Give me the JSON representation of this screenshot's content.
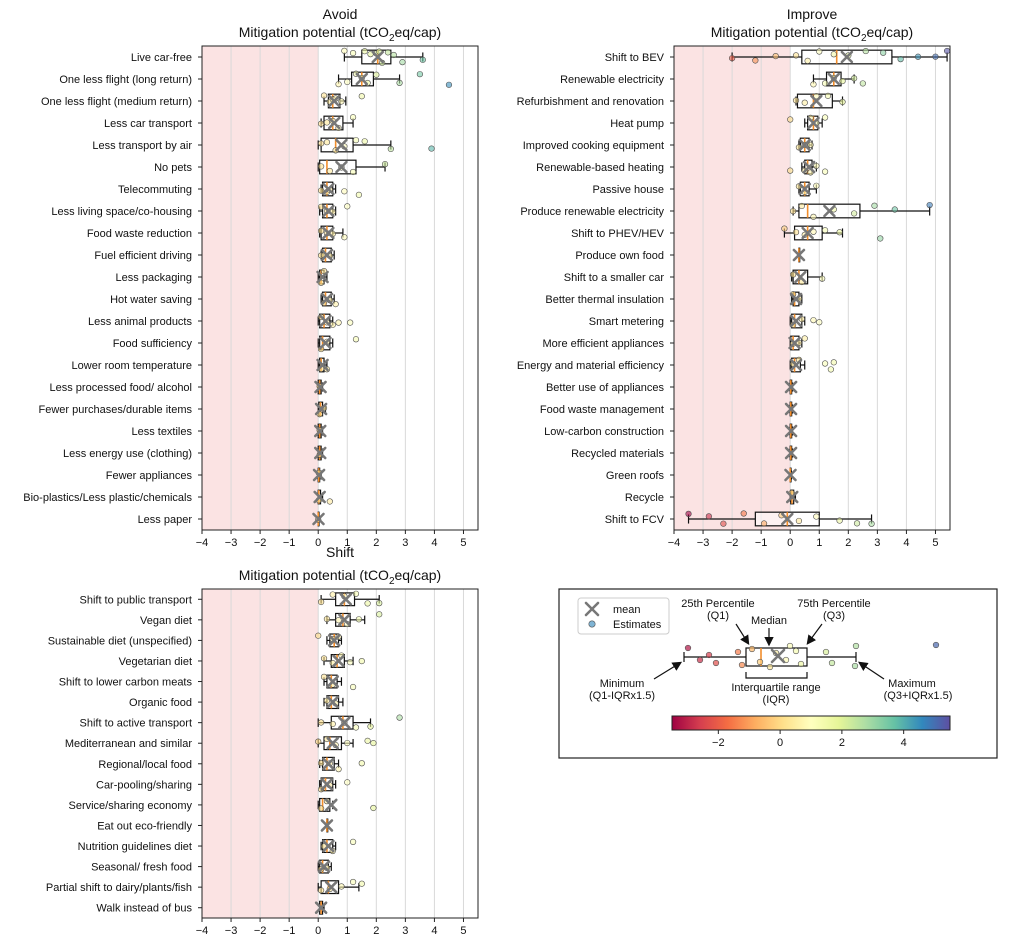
{
  "chart_data": [
    {
      "type": "boxplot",
      "title": "Avoid",
      "xlabel": "Mitigation potential (tCO₂eq/cap)",
      "xlim": [
        -4,
        5.5
      ],
      "xticks": [
        -4,
        -3,
        -2,
        -1,
        0,
        1,
        2,
        3,
        4,
        5
      ],
      "shaded_region": [
        -4,
        0
      ],
      "grid": "vertical",
      "rows": [
        {
          "label": "Live car-free",
          "min": 0.9,
          "q1": 1.5,
          "median": 2.05,
          "q3": 2.5,
          "max": 3.6,
          "mean": 2.05,
          "estimates": [
            0.9,
            1.2,
            1.6,
            1.8,
            2.0,
            2.1,
            2.2,
            2.4,
            2.6,
            2.9,
            3.6
          ]
        },
        {
          "label": "One less flight (long return)",
          "min": 0.7,
          "q1": 1.15,
          "median": 1.5,
          "q3": 1.9,
          "max": 2.8,
          "mean": 1.5,
          "estimates": [
            0.7,
            1.0,
            1.3,
            1.5,
            1.7,
            2.0,
            2.8,
            3.5,
            4.5
          ]
        },
        {
          "label": "One less flight (medium return)",
          "min": 0.2,
          "q1": 0.35,
          "median": 0.5,
          "q3": 0.75,
          "max": 0.95,
          "mean": 0.55,
          "estimates": [
            0.2,
            0.4,
            0.5,
            0.6,
            0.8,
            1.5
          ]
        },
        {
          "label": "Less car transport",
          "min": 0.1,
          "q1": 0.2,
          "median": 0.5,
          "q3": 0.85,
          "max": 1.2,
          "mean": 0.55,
          "estimates": [
            0.1,
            0.3,
            0.5,
            0.7,
            1.2
          ]
        },
        {
          "label": "Less transport by air",
          "min": 0.0,
          "q1": 0.1,
          "median": 0.6,
          "q3": 1.2,
          "max": 2.5,
          "mean": 0.8,
          "estimates": [
            0.1,
            0.3,
            0.6,
            0.9,
            1.3,
            1.6,
            2.5,
            3.9
          ]
        },
        {
          "label": "No pets",
          "min": 0.0,
          "q1": 0.05,
          "median": 0.3,
          "q3": 1.3,
          "max": 2.3,
          "mean": 0.8,
          "estimates": [
            0.1,
            0.4,
            0.8,
            1.2,
            2.3
          ]
        },
        {
          "label": "Telecommuting",
          "min": 0.1,
          "q1": 0.15,
          "median": 0.3,
          "q3": 0.5,
          "max": 0.6,
          "mean": 0.35,
          "estimates": [
            0.1,
            0.3,
            0.4,
            0.9,
            1.4
          ]
        },
        {
          "label": "Less living space/co-housing",
          "min": 0.05,
          "q1": 0.15,
          "median": 0.3,
          "q3": 0.5,
          "max": 0.6,
          "mean": 0.35,
          "estimates": [
            0.1,
            0.3,
            0.5,
            1.0
          ]
        },
        {
          "label": "Food waste reduction",
          "min": 0.05,
          "q1": 0.1,
          "median": 0.3,
          "q3": 0.5,
          "max": 0.85,
          "mean": 0.35,
          "estimates": [
            0.1,
            0.3,
            0.5,
            0.9
          ]
        },
        {
          "label": "Fuel efficient driving",
          "min": 0.1,
          "q1": 0.15,
          "median": 0.25,
          "q3": 0.45,
          "max": 0.55,
          "mean": 0.3,
          "estimates": [
            0.1,
            0.2,
            0.4
          ]
        },
        {
          "label": "Less packaging",
          "min": 0.0,
          "q1": 0.05,
          "median": 0.1,
          "q3": 0.2,
          "max": 0.3,
          "mean": 0.15,
          "estimates": [
            0.1,
            0.2
          ]
        },
        {
          "label": "Hot water saving ",
          "min": 0.1,
          "q1": 0.15,
          "median": 0.25,
          "q3": 0.45,
          "max": 0.55,
          "mean": 0.3,
          "estimates": [
            0.2,
            0.4,
            0.6
          ]
        },
        {
          "label": "Less animal products",
          "min": 0.0,
          "q1": 0.05,
          "median": 0.2,
          "q3": 0.4,
          "max": 0.5,
          "mean": 0.25,
          "estimates": [
            0.1,
            0.3,
            0.5,
            0.7,
            1.1
          ]
        },
        {
          "label": "Food sufficiency",
          "min": 0.0,
          "q1": 0.05,
          "median": 0.15,
          "q3": 0.4,
          "max": 0.5,
          "mean": 0.25,
          "estimates": [
            0.1,
            0.3,
            1.3
          ]
        },
        {
          "label": "Lower room temperature",
          "min": 0.0,
          "q1": 0.05,
          "median": 0.1,
          "q3": 0.2,
          "max": 0.3,
          "mean": 0.15,
          "estimates": [
            0.1,
            0.3
          ]
        },
        {
          "label": "Less processed food/ alcohol",
          "min": 0.0,
          "q1": 0.0,
          "median": 0.05,
          "q3": 0.1,
          "max": 0.15,
          "mean": 0.08,
          "estimates": [
            0.05
          ]
        },
        {
          "label": "Fewer purchases/durable items",
          "min": 0.0,
          "q1": 0.02,
          "median": 0.08,
          "q3": 0.15,
          "max": 0.25,
          "mean": 0.1,
          "estimates": [
            0.05,
            0.2
          ]
        },
        {
          "label": "Less textiles",
          "min": 0.0,
          "q1": 0.0,
          "median": 0.05,
          "q3": 0.1,
          "max": 0.15,
          "mean": 0.07,
          "estimates": [
            0.05
          ]
        },
        {
          "label": "Less energy use (clothing)",
          "min": 0.0,
          "q1": 0.0,
          "median": 0.05,
          "q3": 0.1,
          "max": 0.15,
          "mean": 0.07,
          "estimates": [
            0.05
          ]
        },
        {
          "label": "Fewer appliances",
          "min": 0.0,
          "q1": 0.0,
          "median": 0.02,
          "q3": 0.05,
          "max": 0.1,
          "mean": 0.03,
          "estimates": [
            0.02
          ]
        },
        {
          "label": "Bio-plastics/Less plastic/chemicals",
          "min": 0.0,
          "q1": 0.0,
          "median": 0.02,
          "q3": 0.08,
          "max": 0.15,
          "mean": 0.05,
          "estimates": [
            0.02,
            0.4
          ]
        },
        {
          "label": "Less paper",
          "min": 0.0,
          "q1": 0.0,
          "median": 0.0,
          "q3": 0.01,
          "max": 0.02,
          "mean": 0.01,
          "estimates": [
            0.0
          ]
        }
      ]
    },
    {
      "type": "boxplot",
      "title": "Improve",
      "xlabel": "Mitigation potential (tCO₂eq/cap)",
      "xlim": [
        -4,
        5.5
      ],
      "xticks": [
        -4,
        -3,
        -2,
        -1,
        0,
        1,
        2,
        3,
        4,
        5
      ],
      "shaded_region": [
        -4,
        0
      ],
      "grid": "vertical",
      "rows": [
        {
          "label": "Shift to BEV",
          "min": -2.0,
          "q1": 0.4,
          "median": 1.6,
          "q3": 3.5,
          "max": 5.4,
          "mean": 1.95,
          "estimates": [
            -2.0,
            -1.2,
            -0.5,
            0.2,
            0.6,
            1.0,
            1.5,
            2.0,
            2.6,
            3.2,
            3.8,
            4.4,
            5.0,
            5.4
          ]
        },
        {
          "label": "Renewable electricity",
          "min": 0.8,
          "q1": 1.25,
          "median": 1.5,
          "q3": 1.75,
          "max": 2.2,
          "mean": 1.5,
          "estimates": [
            0.8,
            1.2,
            1.5,
            1.8,
            2.2,
            2.5
          ]
        },
        {
          "label": "Refurbishment and renovation",
          "min": 0.2,
          "q1": 0.25,
          "median": 0.8,
          "q3": 1.45,
          "max": 1.8,
          "mean": 0.9,
          "estimates": [
            0.2,
            0.5,
            0.9,
            1.3,
            1.8
          ]
        },
        {
          "label": "Heat pump",
          "min": 0.5,
          "q1": 0.6,
          "median": 0.8,
          "q3": 0.95,
          "max": 1.1,
          "mean": 0.8,
          "estimates": [
            0.0,
            0.7,
            0.9,
            1.2
          ]
        },
        {
          "label": "Improved cooking equipment",
          "min": 0.3,
          "q1": 0.35,
          "median": 0.5,
          "q3": 0.65,
          "max": 0.75,
          "mean": 0.5,
          "estimates": [
            0.3,
            0.5,
            0.7
          ]
        },
        {
          "label": "Renewable-based heating",
          "min": 0.4,
          "q1": 0.5,
          "median": 0.6,
          "q3": 0.75,
          "max": 0.9,
          "mean": 0.65,
          "estimates": [
            0.0,
            0.5,
            0.7,
            0.9,
            1.2
          ]
        },
        {
          "label": "Passive house",
          "min": 0.3,
          "q1": 0.35,
          "median": 0.5,
          "q3": 0.65,
          "max": 0.9,
          "mean": 0.5,
          "estimates": [
            0.3,
            0.5,
            0.9
          ]
        },
        {
          "label": "Produce renewable electricity",
          "min": 0.1,
          "q1": 0.3,
          "median": 0.6,
          "q3": 2.4,
          "max": 4.8,
          "mean": 1.35,
          "estimates": [
            0.1,
            0.4,
            0.8,
            1.5,
            2.2,
            2.9,
            3.6,
            4.8
          ]
        },
        {
          "label": "Shift to PHEV/HEV",
          "min": -0.2,
          "q1": 0.15,
          "median": 0.6,
          "q3": 1.1,
          "max": 1.8,
          "mean": 0.6,
          "estimates": [
            -0.2,
            0.2,
            0.5,
            0.8,
            1.2,
            1.7,
            3.1
          ]
        },
        {
          "label": "Produce own food",
          "min": 0.3,
          "q1": 0.3,
          "median": 0.3,
          "q3": 0.3,
          "max": 0.3,
          "mean": 0.3,
          "estimates": []
        },
        {
          "label": "Shift to a smaller car",
          "min": 0.05,
          "q1": 0.1,
          "median": 0.3,
          "q3": 0.6,
          "max": 1.1,
          "mean": 0.35,
          "estimates": [
            0.1,
            0.4,
            1.1
          ]
        },
        {
          "label": "Better thermal insulation",
          "min": 0.05,
          "q1": 0.1,
          "median": 0.15,
          "q3": 0.3,
          "max": 0.4,
          "mean": 0.2,
          "estimates": [
            0.1,
            0.3
          ]
        },
        {
          "label": "Smart metering",
          "min": 0.0,
          "q1": 0.05,
          "median": 0.15,
          "q3": 0.4,
          "max": 0.5,
          "mean": 0.2,
          "estimates": [
            0.1,
            0.4,
            0.8,
            1.0
          ]
        },
        {
          "label": "More efficient appliances",
          "min": 0.0,
          "q1": 0.02,
          "median": 0.1,
          "q3": 0.3,
          "max": 0.4,
          "mean": 0.15,
          "estimates": [
            0.1,
            0.3,
            0.5
          ]
        },
        {
          "label": "Energy and material efficiency",
          "min": 0.0,
          "q1": 0.05,
          "median": 0.15,
          "q3": 0.35,
          "max": 0.5,
          "mean": 0.2,
          "estimates": [
            0.1,
            0.3,
            1.2,
            1.4,
            1.5
          ]
        },
        {
          "label": "Better use of appliances",
          "min": 0.0,
          "q1": 0.0,
          "median": 0.02,
          "q3": 0.05,
          "max": 0.08,
          "mean": 0.03,
          "estimates": []
        },
        {
          "label": "Food waste management",
          "min": 0.0,
          "q1": 0.0,
          "median": 0.02,
          "q3": 0.05,
          "max": 0.08,
          "mean": 0.03,
          "estimates": []
        },
        {
          "label": "Low-carbon construction",
          "min": 0.0,
          "q1": 0.0,
          "median": 0.02,
          "q3": 0.05,
          "max": 0.08,
          "mean": 0.03,
          "estimates": []
        },
        {
          "label": "Recycled materials",
          "min": 0.0,
          "q1": 0.0,
          "median": 0.02,
          "q3": 0.05,
          "max": 0.08,
          "mean": 0.03,
          "estimates": []
        },
        {
          "label": "Green roofs",
          "min": 0.0,
          "q1": 0.0,
          "median": 0.0,
          "q3": 0.02,
          "max": 0.04,
          "mean": 0.01,
          "estimates": []
        },
        {
          "label": "Recycle",
          "min": 0.0,
          "q1": 0.02,
          "median": 0.06,
          "q3": 0.12,
          "max": 0.18,
          "mean": 0.07,
          "estimates": [
            0.05
          ]
        },
        {
          "label": "Shift to FCV",
          "min": -3.5,
          "q1": -1.2,
          "median": -0.1,
          "q3": 1.0,
          "max": 2.8,
          "mean": -0.1,
          "estimates": [
            -3.5,
            -2.8,
            -2.3,
            -1.6,
            -0.9,
            -0.3,
            0.3,
            0.9,
            1.7,
            2.3,
            2.8
          ]
        }
      ]
    },
    {
      "type": "boxplot",
      "title": "Shift",
      "xlabel": "Mitigation potential (tCO₂eq/cap)",
      "xlim": [
        -4,
        5.5
      ],
      "xticks": [
        -4,
        -3,
        -2,
        -1,
        0,
        1,
        2,
        3,
        4,
        5
      ],
      "shaded_region": [
        -4,
        0
      ],
      "grid": "vertical",
      "rows": [
        {
          "label": "Shift to public transport",
          "min": 0.1,
          "q1": 0.6,
          "median": 0.9,
          "q3": 1.25,
          "max": 2.1,
          "mean": 0.95,
          "estimates": [
            0.1,
            0.5,
            0.9,
            1.3,
            1.7,
            2.1
          ]
        },
        {
          "label": "Vegan diet",
          "min": 0.3,
          "q1": 0.6,
          "median": 0.85,
          "q3": 1.1,
          "max": 1.6,
          "mean": 0.9,
          "estimates": [
            0.3,
            0.7,
            1.0,
            1.4,
            2.1
          ]
        },
        {
          "label": "Sustainable diet (unspecified)",
          "min": 0.3,
          "q1": 0.4,
          "median": 0.55,
          "q3": 0.7,
          "max": 0.8,
          "mean": 0.55,
          "estimates": [
            0.0,
            0.5,
            0.7
          ]
        },
        {
          "label": "Vegetarian diet",
          "min": 0.2,
          "q1": 0.45,
          "median": 0.65,
          "q3": 0.9,
          "max": 1.2,
          "mean": 0.7,
          "estimates": [
            0.2,
            0.5,
            0.8,
            1.1,
            1.5
          ]
        },
        {
          "label": "Shift to lower carbon meats",
          "min": 0.2,
          "q1": 0.3,
          "median": 0.45,
          "q3": 0.65,
          "max": 0.8,
          "mean": 0.5,
          "estimates": [
            0.2,
            0.5,
            1.2
          ]
        },
        {
          "label": "Organic food",
          "min": 0.2,
          "q1": 0.3,
          "median": 0.45,
          "q3": 0.7,
          "max": 0.85,
          "mean": 0.5,
          "estimates": [
            0.3,
            0.6
          ]
        },
        {
          "label": "Shift to active transport",
          "min": 0.0,
          "q1": 0.45,
          "median": 0.85,
          "q3": 1.2,
          "max": 1.8,
          "mean": 0.9,
          "estimates": [
            0.1,
            0.5,
            0.9,
            1.3,
            1.8,
            2.8
          ]
        },
        {
          "label": "Mediterranean and similar",
          "min": 0.0,
          "q1": 0.2,
          "median": 0.4,
          "q3": 0.8,
          "max": 1.2,
          "mean": 0.5,
          "estimates": [
            0.0,
            0.3,
            0.6,
            1.0,
            1.7,
            1.9
          ]
        },
        {
          "label": "Regional/local food",
          "min": 0.05,
          "q1": 0.15,
          "median": 0.3,
          "q3": 0.55,
          "max": 0.7,
          "mean": 0.35,
          "estimates": [
            0.1,
            0.4,
            0.7,
            1.5
          ]
        },
        {
          "label": "Car-pooling/sharing",
          "min": 0.05,
          "q1": 0.1,
          "median": 0.25,
          "q3": 0.5,
          "max": 0.6,
          "mean": 0.3,
          "estimates": [
            0.1,
            0.4,
            1.0
          ]
        },
        {
          "label": "Service/sharing economy",
          "min": 0.0,
          "q1": 0.05,
          "median": 0.15,
          "q3": 0.4,
          "max": 0.5,
          "mean": 0.45,
          "estimates": [
            0.1,
            0.3,
            1.9
          ]
        },
        {
          "label": "Eat out eco-friendly",
          "min": 0.3,
          "q1": 0.3,
          "median": 0.3,
          "q3": 0.3,
          "max": 0.3,
          "mean": 0.3,
          "estimates": []
        },
        {
          "label": "Nutrition guidelines diet",
          "min": 0.1,
          "q1": 0.15,
          "median": 0.3,
          "q3": 0.5,
          "max": 0.6,
          "mean": 0.35,
          "estimates": [
            0.2,
            0.5,
            1.2
          ]
        },
        {
          "label": "Seasonal/ fresh food",
          "min": 0.0,
          "q1": 0.05,
          "median": 0.15,
          "q3": 0.35,
          "max": 0.45,
          "mean": 0.2,
          "estimates": [
            0.1,
            0.3
          ]
        },
        {
          "label": "Partial shift to dairy/plants/fish",
          "min": 0.0,
          "q1": 0.1,
          "median": 0.35,
          "q3": 0.7,
          "max": 1.4,
          "mean": 0.45,
          "estimates": [
            0.1,
            0.4,
            0.8,
            1.2,
            1.5
          ]
        },
        {
          "label": "Walk instead of bus",
          "min": 0.05,
          "q1": 0.05,
          "median": 0.1,
          "q3": 0.15,
          "max": 0.2,
          "mean": 0.1,
          "estimates": []
        }
      ]
    }
  ],
  "legend": {
    "mean_label": "mean",
    "estimates_label": "Estimates",
    "q1_label": "25th Percentile",
    "q1_sub": "(Q1)",
    "q3_label": "75th Percentile",
    "q3_sub": "(Q3)",
    "median_label": "Median",
    "min_label": "Minimum",
    "min_sub": "(Q1-IQRx1.5)",
    "max_label": "Maximum",
    "max_sub": "(Q3+IQRx1.5)",
    "iqr_label": "Interquartile range",
    "iqr_sub": "(IQR)",
    "colorbar_ticks": [
      -2,
      0,
      2,
      4
    ],
    "colorbar_range": [
      -3.5,
      5.5
    ]
  }
}
